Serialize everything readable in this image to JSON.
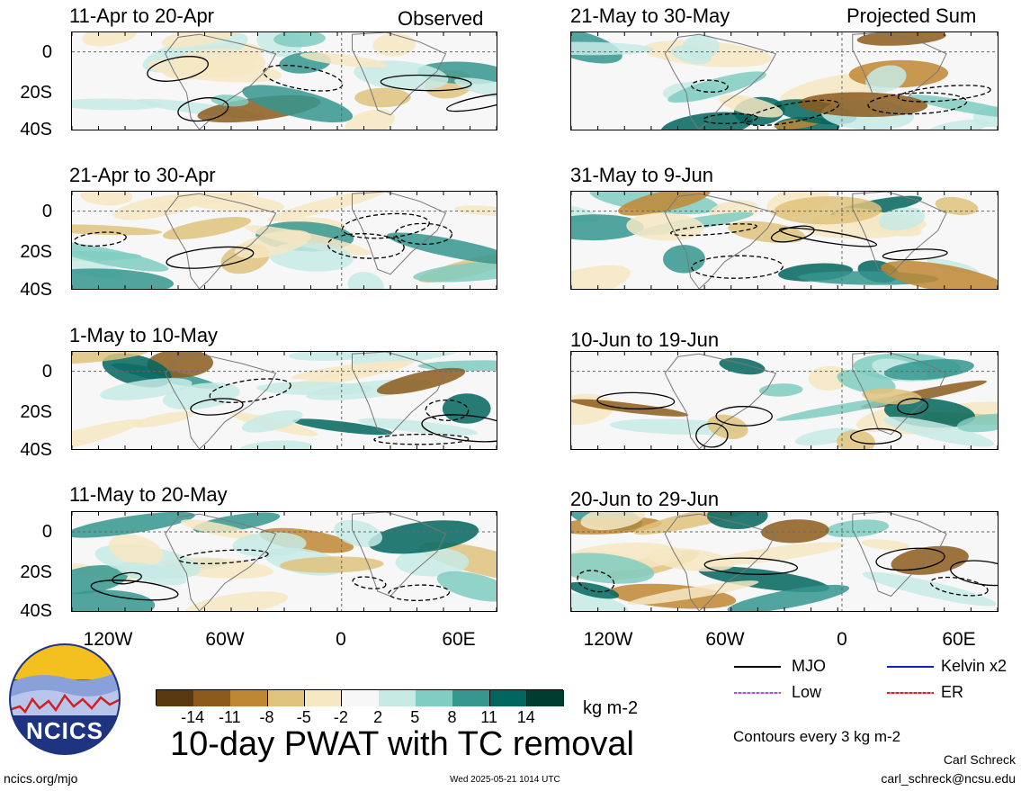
{
  "left_label": "Observed",
  "right_label": "Projected Sum",
  "panels_left": [
    {
      "title": "11-Apr to 20-Apr"
    },
    {
      "title": "21-Apr to 30-Apr"
    },
    {
      "title": "1-May to 10-May"
    },
    {
      "title": "11-May to 20-May"
    }
  ],
  "panels_right": [
    {
      "title": "21-May to 30-May"
    },
    {
      "title": "31-May to 9-Jun"
    },
    {
      "title": "10-Jun to 19-Jun"
    },
    {
      "title": "20-Jun to 29-Jun"
    }
  ],
  "lat_labels": [
    "0",
    "20S",
    "40S"
  ],
  "lon_labels": [
    "120W",
    "60W",
    "0",
    "60E"
  ],
  "colorbar": {
    "colors": [
      "#5a3810",
      "#8c5a1c",
      "#bf8733",
      "#dfc27d",
      "#f6e8c3",
      "#f7f7f7",
      "#c7eae5",
      "#80cdc1",
      "#35978f",
      "#01665e",
      "#003c30"
    ],
    "labels": [
      "-14",
      "-11",
      "-8",
      "-5",
      "-2",
      "2",
      "5",
      "8",
      "11",
      "14"
    ],
    "units": "kg m-2"
  },
  "main_title": "10-day PWAT with TC removal",
  "legend": {
    "items": [
      {
        "label": "MJO",
        "color": "#000000"
      },
      {
        "label": "Kelvin x2",
        "color": "#1020c8"
      },
      {
        "label": "Low",
        "color": "#b050e0"
      },
      {
        "label": "ER",
        "color": "#e02020"
      }
    ],
    "contours_note": "Contours every 3 kg m-2"
  },
  "footer": {
    "site": "ncics.org/mjo",
    "timestamp": "Wed 2025-05-21 1014 UTC",
    "author": "Carl Schreck",
    "email": "carl_schreck@ncsu.edu"
  },
  "logo": {
    "text": "NCICS"
  }
}
